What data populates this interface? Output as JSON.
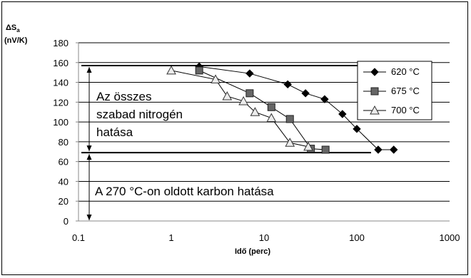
{
  "chart_data": {
    "type": "line",
    "xscale": "log",
    "xlim": [
      0.1,
      1000
    ],
    "ylim": [
      0,
      180
    ],
    "xticks": [
      0.1,
      1,
      10,
      100,
      1000
    ],
    "xtick_labels": [
      "0.1",
      "1",
      "10",
      "100",
      "1000"
    ],
    "yticks": [
      0,
      20,
      40,
      60,
      80,
      100,
      120,
      140,
      160,
      180
    ],
    "ytick_labels": [
      "0",
      "20",
      "40",
      "60",
      "80",
      "100",
      "120",
      "140",
      "160",
      "180"
    ],
    "xlabel": "Idő (perc)",
    "ylabel_line1": "ΔS",
    "ylabel_sub": "a",
    "ylabel_line2": "(nV/K)",
    "grid": "horizontal",
    "legend_position": "top-right",
    "series": [
      {
        "name": "620 °C",
        "marker": "diamond",
        "x": [
          2,
          7,
          18,
          28,
          45,
          70,
          100,
          170,
          250
        ],
        "y": [
          156,
          149,
          138,
          129,
          123,
          108,
          93,
          72,
          72
        ]
      },
      {
        "name": "675 °C",
        "marker": "square",
        "x": [
          2,
          7,
          12,
          19,
          32,
          46
        ],
        "y": [
          152,
          129,
          115,
          103,
          73,
          72
        ]
      },
      {
        "name": "700 °C",
        "marker": "triangle",
        "x": [
          1,
          3,
          4,
          6,
          8,
          12,
          19,
          30
        ],
        "y": [
          152,
          143,
          126,
          121,
          110,
          104,
          79,
          75
        ]
      }
    ],
    "reference_lines": [
      157,
      69
    ],
    "annotations": [
      {
        "line": "Az összes"
      },
      {
        "line": "szabad nitrogén"
      },
      {
        "line": "hatása"
      },
      {
        "line": "A 270 °C-on oldott karbon hatása"
      }
    ]
  }
}
